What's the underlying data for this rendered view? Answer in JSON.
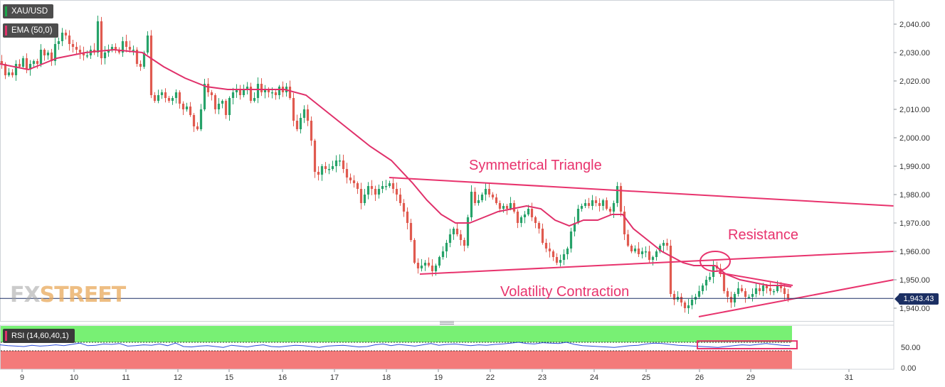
{
  "symbol": "XAU/USD",
  "indicator_label": "EMA (50,0)",
  "rsi_label": "RSI (14,60,40,1)",
  "brand": {
    "part1": "FX",
    "part2": "STREET"
  },
  "current_price": "1,943.43",
  "annotations": {
    "triangle": "Symmetrical Triangle",
    "resistance": "Resistance",
    "volatility": "Volatility Contraction"
  },
  "colors": {
    "up_candle": "#26a269",
    "down_candle": "#e05a4f",
    "ema": "#e0306a",
    "trendline": "#e8336d",
    "price_line": "#1b2f63",
    "rsi_line": "#2a4bd7",
    "rsi_top_zone": "#78f074",
    "rsi_bottom_zone": "#f47a7a"
  },
  "chart_data": {
    "type": "candlestick",
    "y_axis": {
      "ticks": [
        "2,040.00",
        "2,030.00",
        "2,020.00",
        "2,010.00",
        "2,000.00",
        "1,990.00",
        "1,980.00",
        "1,970.00",
        "1,960.00",
        "1,950.00",
        "1,940.00"
      ],
      "tick_values": [
        2040,
        2030,
        2020,
        2010,
        2000,
        1990,
        1980,
        1970,
        1960,
        1950,
        1940
      ],
      "range": [
        1937,
        2048
      ]
    },
    "x_axis": {
      "ticks": [
        "9",
        "10",
        "11",
        "12",
        "15",
        "16",
        "17",
        "18",
        "19",
        "22",
        "23",
        "24",
        "25",
        "26",
        "29",
        "31"
      ]
    },
    "price_path": [
      [
        0,
        2027
      ],
      [
        5,
        2026
      ],
      [
        10,
        2022
      ],
      [
        15,
        2023
      ],
      [
        20,
        2022
      ],
      [
        25,
        2026
      ],
      [
        30,
        2025
      ],
      [
        35,
        2028
      ],
      [
        40,
        2024
      ],
      [
        45,
        2026
      ],
      [
        50,
        2027
      ],
      [
        55,
        2026
      ],
      [
        60,
        2031
      ],
      [
        65,
        2029
      ],
      [
        70,
        2030
      ],
      [
        75,
        2027
      ],
      [
        80,
        2033
      ],
      [
        85,
        2034
      ],
      [
        90,
        2037
      ],
      [
        95,
        2036
      ],
      [
        100,
        2033
      ],
      [
        105,
        2032
      ],
      [
        110,
        2031
      ],
      [
        115,
        2030
      ],
      [
        120,
        2029
      ],
      [
        125,
        2029
      ],
      [
        130,
        2031
      ],
      [
        135,
        2030
      ],
      [
        140,
        2041
      ],
      [
        145,
        2028
      ],
      [
        150,
        2030
      ],
      [
        155,
        2031
      ],
      [
        160,
        2032
      ],
      [
        165,
        2031
      ],
      [
        170,
        2030
      ],
      [
        175,
        2034
      ],
      [
        180,
        2032
      ],
      [
        185,
        2031
      ],
      [
        190,
        2031
      ],
      [
        195,
        2026
      ],
      [
        200,
        2025
      ],
      [
        205,
        2030
      ],
      [
        210,
        2036
      ],
      [
        215,
        2015
      ],
      [
        220,
        2013
      ],
      [
        225,
        2015
      ],
      [
        230,
        2016
      ],
      [
        235,
        2014
      ],
      [
        240,
        2013
      ],
      [
        245,
        2014
      ],
      [
        250,
        2016
      ],
      [
        255,
        2012
      ],
      [
        260,
        2010
      ],
      [
        265,
        2011
      ],
      [
        270,
        2008
      ],
      [
        275,
        2004
      ],
      [
        280,
        2003
      ],
      [
        285,
        2010
      ],
      [
        290,
        2019
      ],
      [
        295,
        2016
      ],
      [
        300,
        2015
      ],
      [
        305,
        2010
      ],
      [
        310,
        2012
      ],
      [
        315,
        2013
      ],
      [
        320,
        2008
      ],
      [
        325,
        2014
      ],
      [
        330,
        2016
      ],
      [
        335,
        2017
      ],
      [
        340,
        2015
      ],
      [
        345,
        2017
      ],
      [
        350,
        2018
      ],
      [
        355,
        2013
      ],
      [
        360,
        2014
      ],
      [
        365,
        2019
      ],
      [
        370,
        2016
      ],
      [
        375,
        2017
      ],
      [
        380,
        2016
      ],
      [
        385,
        2016
      ],
      [
        390,
        2015
      ],
      [
        395,
        2018
      ],
      [
        400,
        2016
      ],
      [
        405,
        2018
      ],
      [
        410,
        2014
      ],
      [
        415,
        2006
      ],
      [
        420,
        2003
      ],
      [
        425,
        2007
      ],
      [
        430,
        2010
      ],
      [
        435,
        2006
      ],
      [
        440,
        1999
      ],
      [
        445,
        1988
      ],
      [
        450,
        1987
      ],
      [
        455,
        1990
      ],
      [
        460,
        1989
      ],
      [
        465,
        1989
      ],
      [
        470,
        1990
      ],
      [
        475,
        1992
      ],
      [
        480,
        1992
      ],
      [
        485,
        1989
      ],
      [
        490,
        1986
      ],
      [
        495,
        1985
      ],
      [
        500,
        1984
      ],
      [
        505,
        1982
      ],
      [
        510,
        1977
      ],
      [
        515,
        1980
      ],
      [
        520,
        1983
      ],
      [
        525,
        1982
      ],
      [
        530,
        1980
      ],
      [
        535,
        1982
      ],
      [
        540,
        1983
      ],
      [
        545,
        1983
      ],
      [
        550,
        1984
      ],
      [
        555,
        1982
      ],
      [
        560,
        1980
      ],
      [
        565,
        1977
      ],
      [
        570,
        1974
      ],
      [
        575,
        1970
      ],
      [
        580,
        1964
      ],
      [
        585,
        1956
      ],
      [
        590,
        1954
      ],
      [
        595,
        1955
      ],
      [
        600,
        1956
      ],
      [
        605,
        1955
      ],
      [
        610,
        1953
      ],
      [
        615,
        1955
      ],
      [
        620,
        1958
      ],
      [
        625,
        1960
      ],
      [
        630,
        1963
      ],
      [
        635,
        1966
      ],
      [
        640,
        1968
      ],
      [
        645,
        1966
      ],
      [
        650,
        1964
      ],
      [
        655,
        1962
      ],
      [
        660,
        1972
      ],
      [
        665,
        1981
      ],
      [
        670,
        1977
      ],
      [
        675,
        1978
      ],
      [
        680,
        1980
      ],
      [
        685,
        1982
      ],
      [
        690,
        1980
      ],
      [
        695,
        1979
      ],
      [
        700,
        1977
      ],
      [
        705,
        1975
      ],
      [
        710,
        1976
      ],
      [
        715,
        1975
      ],
      [
        720,
        1977
      ],
      [
        725,
        1974
      ],
      [
        730,
        1970
      ],
      [
        735,
        1972
      ],
      [
        740,
        1973
      ],
      [
        745,
        1975
      ],
      [
        750,
        1972
      ],
      [
        755,
        1970
      ],
      [
        760,
        1968
      ],
      [
        765,
        1963
      ],
      [
        770,
        1961
      ],
      [
        775,
        1960
      ],
      [
        780,
        1958
      ],
      [
        785,
        1956
      ],
      [
        790,
        1957
      ],
      [
        795,
        1959
      ],
      [
        800,
        1961
      ],
      [
        805,
        1967
      ],
      [
        810,
        1970
      ],
      [
        815,
        1975
      ],
      [
        820,
        1976
      ],
      [
        825,
        1977
      ],
      [
        830,
        1976
      ],
      [
        835,
        1978
      ],
      [
        840,
        1977
      ],
      [
        845,
        1976
      ],
      [
        850,
        1978
      ],
      [
        855,
        1975
      ],
      [
        860,
        1974
      ],
      [
        865,
        1977
      ],
      [
        870,
        1983
      ],
      [
        875,
        1974
      ],
      [
        880,
        1966
      ],
      [
        885,
        1962
      ],
      [
        890,
        1960
      ],
      [
        895,
        1961
      ],
      [
        900,
        1959
      ],
      [
        905,
        1960
      ],
      [
        910,
        1960
      ],
      [
        915,
        1957
      ],
      [
        920,
        1958
      ],
      [
        925,
        1960
      ],
      [
        930,
        1962
      ],
      [
        935,
        1963
      ],
      [
        940,
        1962
      ],
      [
        945,
        1945
      ],
      [
        950,
        1943
      ],
      [
        955,
        1944
      ],
      [
        960,
        1942
      ],
      [
        965,
        1940
      ],
      [
        970,
        1941
      ],
      [
        975,
        1943
      ],
      [
        980,
        1944
      ],
      [
        985,
        1946
      ],
      [
        990,
        1948
      ],
      [
        995,
        1950
      ],
      [
        1000,
        1951
      ],
      [
        1005,
        1955
      ],
      [
        1010,
        1954
      ],
      [
        1015,
        1952
      ],
      [
        1020,
        1946
      ],
      [
        1025,
        1944
      ],
      [
        1030,
        1942
      ],
      [
        1035,
        1945
      ],
      [
        1040,
        1947
      ],
      [
        1045,
        1946
      ],
      [
        1050,
        1944
      ],
      [
        1055,
        1944
      ],
      [
        1060,
        1945
      ],
      [
        1065,
        1947
      ],
      [
        1070,
        1946
      ],
      [
        1075,
        1948
      ],
      [
        1080,
        1947
      ],
      [
        1085,
        1946
      ],
      [
        1090,
        1946
      ],
      [
        1095,
        1948
      ],
      [
        1100,
        1947
      ],
      [
        1105,
        1945
      ],
      [
        1110,
        1943.4
      ]
    ],
    "ema_path": [
      [
        0,
        2026
      ],
      [
        40,
        2024
      ],
      [
        80,
        2028
      ],
      [
        120,
        2030
      ],
      [
        160,
        2031
      ],
      [
        200,
        2030
      ],
      [
        230,
        2025
      ],
      [
        260,
        2021
      ],
      [
        290,
        2018
      ],
      [
        320,
        2017
      ],
      [
        360,
        2017
      ],
      [
        400,
        2017
      ],
      [
        430,
        2015
      ],
      [
        460,
        2009
      ],
      [
        490,
        2003
      ],
      [
        520,
        1997
      ],
      [
        550,
        1992
      ],
      [
        580,
        1984
      ],
      [
        600,
        1978
      ],
      [
        620,
        1973
      ],
      [
        640,
        1970
      ],
      [
        660,
        1970
      ],
      [
        680,
        1972
      ],
      [
        700,
        1974
      ],
      [
        720,
        1975
      ],
      [
        740,
        1976
      ],
      [
        760,
        1975
      ],
      [
        780,
        1971
      ],
      [
        800,
        1969
      ],
      [
        820,
        1971
      ],
      [
        840,
        1971
      ],
      [
        860,
        1973
      ],
      [
        875,
        1973
      ],
      [
        890,
        1968
      ],
      [
        910,
        1964
      ],
      [
        930,
        1960
      ],
      [
        945,
        1958
      ],
      [
        960,
        1956
      ],
      [
        975,
        1955
      ],
      [
        990,
        1955
      ],
      [
        1005,
        1955
      ],
      [
        1020,
        1952
      ],
      [
        1040,
        1950
      ],
      [
        1060,
        1949
      ],
      [
        1080,
        1948
      ],
      [
        1100,
        1948
      ],
      [
        1112,
        1947.5
      ]
    ],
    "rsi": {
      "levels": [
        "50.00",
        "0.00"
      ],
      "level_values": [
        50,
        0
      ],
      "values": [
        54,
        52,
        51,
        50,
        53,
        51,
        52,
        54,
        52,
        55,
        58,
        52,
        53,
        56,
        55,
        57,
        51,
        52,
        54,
        53,
        56,
        52,
        58,
        50,
        49,
        51,
        52,
        50,
        48,
        53,
        51,
        49,
        52,
        54,
        50,
        49,
        51,
        53,
        52,
        50,
        48,
        51,
        52,
        53,
        51,
        49,
        50,
        54,
        56,
        52,
        55,
        53,
        51,
        54,
        57,
        53,
        55,
        56,
        54,
        52,
        54,
        53,
        55,
        56,
        58,
        60,
        57,
        56,
        59,
        58,
        57,
        60,
        55,
        52,
        51,
        50,
        49,
        48,
        50,
        52,
        53,
        56,
        58,
        57,
        55,
        53,
        52,
        51,
        50,
        49,
        48,
        50,
        52,
        54,
        53,
        55,
        57,
        55,
        53,
        52
      ]
    },
    "annotations": [
      "Symmetrical Triangle",
      "Resistance",
      "Volatility Contraction"
    ]
  }
}
